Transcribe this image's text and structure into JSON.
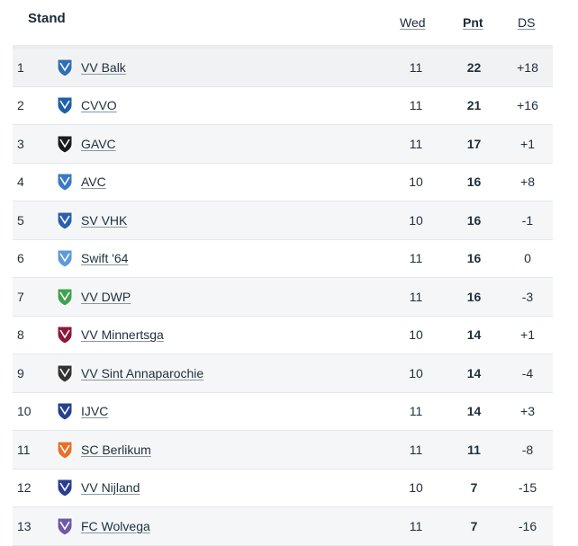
{
  "header": {
    "title": "Stand",
    "col_played": "Wed",
    "col_points": "Pnt",
    "col_diff": "DS"
  },
  "rows": [
    {
      "pos": "1",
      "team": "VV Balk",
      "played": "11",
      "points": "22",
      "diff": "+18",
      "logo": "vv-balk-crest-icon",
      "color": "#2f6fb5"
    },
    {
      "pos": "2",
      "team": "CVVO",
      "played": "11",
      "points": "21",
      "diff": "+16",
      "logo": "cvvo-crest-icon",
      "color": "#1f5fa8"
    },
    {
      "pos": "3",
      "team": "GAVC",
      "played": "11",
      "points": "17",
      "diff": "+1",
      "logo": "gavc-crest-icon",
      "color": "#1b1b1b"
    },
    {
      "pos": "4",
      "team": "AVC",
      "played": "10",
      "points": "16",
      "diff": "+8",
      "logo": "avc-crest-icon",
      "color": "#3a79c4"
    },
    {
      "pos": "5",
      "team": "SV VHK",
      "played": "10",
      "points": "16",
      "diff": "-1",
      "logo": "sv-vhk-crest-icon",
      "color": "#2d5fb0"
    },
    {
      "pos": "6",
      "team": "Swift '64",
      "played": "11",
      "points": "16",
      "diff": "0",
      "logo": "swift-64-crest-icon",
      "color": "#5b9bd8"
    },
    {
      "pos": "7",
      "team": "VV DWP",
      "played": "11",
      "points": "16",
      "diff": "-3",
      "logo": "vv-dwp-crest-icon",
      "color": "#3fa34d"
    },
    {
      "pos": "8",
      "team": "VV Minnertsga",
      "played": "10",
      "points": "14",
      "diff": "+1",
      "logo": "vv-minnertsga-crest-icon",
      "color": "#8b1a3a"
    },
    {
      "pos": "9",
      "team": "VV Sint Annaparochie",
      "played": "10",
      "points": "14",
      "diff": "-4",
      "logo": "vv-sint-annaparochie-crest-icon",
      "color": "#333333"
    },
    {
      "pos": "10",
      "team": "IJVC",
      "played": "11",
      "points": "14",
      "diff": "+3",
      "logo": "ijvc-crest-icon",
      "color": "#24418f"
    },
    {
      "pos": "11",
      "team": "SC Berlikum",
      "played": "11",
      "points": "11",
      "diff": "-8",
      "logo": "sc-berlikum-crest-icon",
      "color": "#e8702a"
    },
    {
      "pos": "12",
      "team": "VV Nijland",
      "played": "10",
      "points": "7",
      "diff": "-15",
      "logo": "vv-nijland-crest-icon",
      "color": "#2a3f8f"
    },
    {
      "pos": "13",
      "team": "FC Wolvega",
      "played": "11",
      "points": "7",
      "diff": "-16",
      "logo": "fc-wolvega-crest-icon",
      "color": "#6a5aa8"
    }
  ]
}
